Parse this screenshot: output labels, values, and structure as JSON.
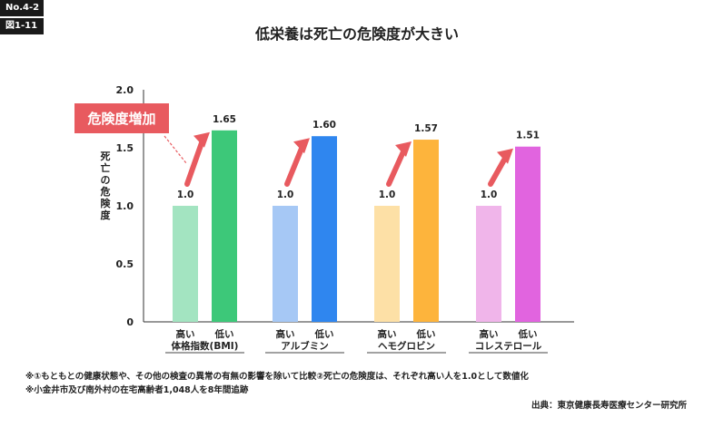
{
  "badges": {
    "number": "No.4-2",
    "figure": "図1-11"
  },
  "chart_data": {
    "type": "bar",
    "title": "低栄養は死亡の危険度が大きい",
    "ylabel": "死亡の危険度",
    "ylim": [
      0,
      2.0
    ],
    "yticks": [
      "0",
      "0.5",
      "1.0",
      "1.5",
      "2.0"
    ],
    "ytick_values": [
      0,
      0.5,
      1.0,
      1.5,
      2.0
    ],
    "bar_labels": [
      "高い",
      "低い"
    ],
    "callout": "危険度増加",
    "groups": [
      {
        "name": "体格指数(BMI)",
        "values": [
          1.0,
          1.65
        ],
        "labels": [
          "1.0",
          "1.65"
        ],
        "colors": [
          "#a3e4c1",
          "#3dc879"
        ]
      },
      {
        "name": "アルブミン",
        "values": [
          1.0,
          1.6
        ],
        "labels": [
          "1.0",
          "1.60"
        ],
        "colors": [
          "#a6c8f5",
          "#2f86ef"
        ]
      },
      {
        "name": "ヘモグロビン",
        "values": [
          1.0,
          1.57
        ],
        "labels": [
          "1.0",
          "1.57"
        ],
        "colors": [
          "#fde0a6",
          "#fdb43c"
        ]
      },
      {
        "name": "コレステロール",
        "values": [
          1.0,
          1.51
        ],
        "labels": [
          "1.0",
          "1.51"
        ],
        "colors": [
          "#f0b5ea",
          "#e164df"
        ]
      }
    ],
    "arrow_color": "#e85a5f",
    "grid": false,
    "legend": "none"
  },
  "notes": [
    "※①もともとの健康状態や、その他の検査の異常の有無の影響を除いて比較②死亡の危険度は、それぞれ高い人を1.0として数値化",
    "※小金井市及び南外村の在宅高齢者1,048人を8年間追跡"
  ],
  "source": "出典：東京健康長寿医療センター研究所"
}
